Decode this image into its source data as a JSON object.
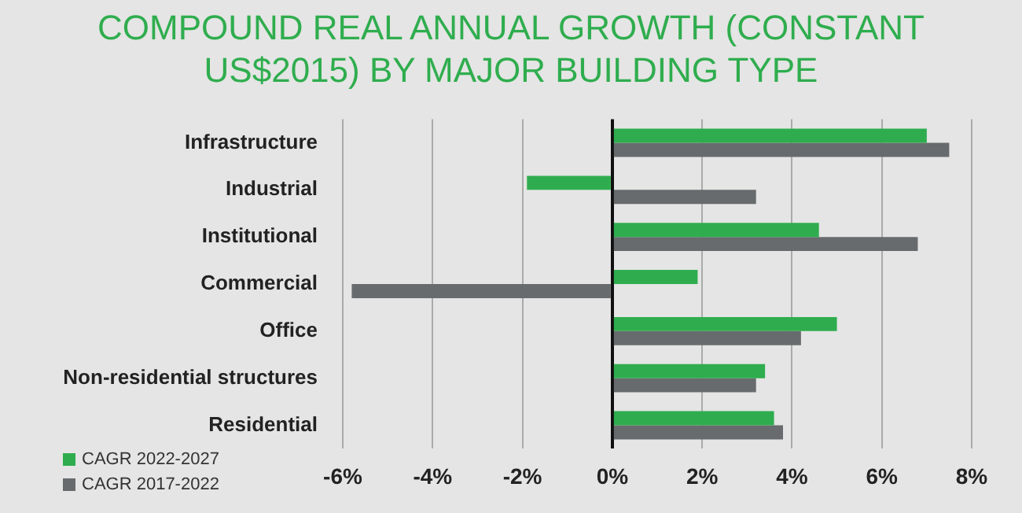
{
  "chart_data": {
    "type": "bar",
    "orientation": "horizontal",
    "title": "COMPOUND REAL ANNUAL GROWTH (CONSTANT US$2015) BY MAJOR BUILDING TYPE",
    "categories": [
      "Infrastructure",
      "Industrial",
      "Institutional",
      "Commercial",
      "Office",
      "Non-residential structures",
      "Residential"
    ],
    "series": [
      {
        "name": "CAGR 2022-2027",
        "color": "#2fad4e",
        "values": [
          7.0,
          -1.9,
          4.6,
          1.9,
          5.0,
          3.4,
          3.6
        ]
      },
      {
        "name": "CAGR 2017-2022",
        "color": "#676b6d",
        "values": [
          7.5,
          3.2,
          6.8,
          -5.8,
          4.2,
          3.2,
          3.8
        ]
      }
    ],
    "xlim": [
      -6,
      8
    ],
    "xticks": [
      {
        "value": -6,
        "label": "-6%"
      },
      {
        "value": -4,
        "label": "-4%"
      },
      {
        "value": -2,
        "label": "-2%"
      },
      {
        "value": 0,
        "label": "0%"
      },
      {
        "value": 2,
        "label": "2%"
      },
      {
        "value": 4,
        "label": "4%"
      },
      {
        "value": 6,
        "label": "6%"
      },
      {
        "value": 8,
        "label": "8%"
      }
    ],
    "grid": "x",
    "legend": "bottom left"
  }
}
